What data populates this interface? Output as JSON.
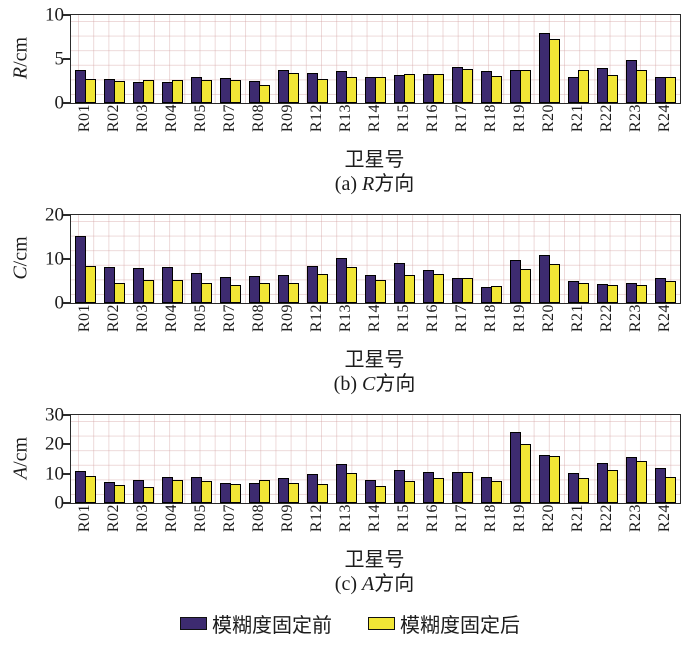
{
  "figure": {
    "x_axis_title": "卫星号",
    "panels": [
      "(a) R方向",
      "(b) C方向",
      "(c) A方向"
    ]
  },
  "legend": {
    "items": [
      {
        "label": "模糊度固定前",
        "color": "#3d2b70"
      },
      {
        "label": "模糊度固定后",
        "color": "#f1e636"
      }
    ]
  },
  "colors": {
    "before_fix": "#3d2b70",
    "after_fix": "#f1e636",
    "axis": "#2a2a2a",
    "grid": "#d2a0a0"
  },
  "chart_data": [
    {
      "type": "bar",
      "panel": "a",
      "caption": {
        "prefix": "(a) ",
        "letter": "R",
        "suffix": "方向"
      },
      "ylabel": {
        "letter": "R",
        "unit": "/cm"
      },
      "xlabel": "卫星号",
      "ylim": [
        0,
        10
      ],
      "yticks": [
        0,
        5,
        10
      ],
      "grid": true,
      "legend_position": "bottom",
      "categories": [
        "R01",
        "R02",
        "R03",
        "R04",
        "R05",
        "R07",
        "R08",
        "R09",
        "R12",
        "R13",
        "R14",
        "R15",
        "R16",
        "R17",
        "R18",
        "R19",
        "R20",
        "R21",
        "R22",
        "R23",
        "R24"
      ],
      "series": [
        {
          "name": "模糊度固定前",
          "color": "#3d2b70",
          "values": [
            3.7,
            2.7,
            2.4,
            2.4,
            2.9,
            2.8,
            2.5,
            3.8,
            3.4,
            3.6,
            2.9,
            3.2,
            3.3,
            4.1,
            3.6,
            3.8,
            7.9,
            3.0,
            4.0,
            4.9,
            3.0
          ]
        },
        {
          "name": "模糊度固定后",
          "color": "#f1e636",
          "values": [
            2.7,
            2.5,
            2.6,
            2.6,
            2.6,
            2.6,
            2.0,
            3.4,
            2.7,
            2.9,
            2.9,
            3.3,
            3.3,
            3.9,
            3.1,
            3.8,
            7.3,
            3.7,
            3.2,
            3.8,
            2.9
          ]
        }
      ]
    },
    {
      "type": "bar",
      "panel": "b",
      "caption": {
        "prefix": "(b) ",
        "letter": "C",
        "suffix": "方向"
      },
      "ylabel": {
        "letter": "C",
        "unit": "/cm"
      },
      "xlabel": "卫星号",
      "ylim": [
        0,
        20
      ],
      "yticks": [
        0,
        10,
        20
      ],
      "grid": true,
      "legend_position": "bottom",
      "categories": [
        "R01",
        "R02",
        "R03",
        "R04",
        "R05",
        "R07",
        "R08",
        "R09",
        "R12",
        "R13",
        "R14",
        "R15",
        "R16",
        "R17",
        "R18",
        "R19",
        "R20",
        "R21",
        "R22",
        "R23",
        "R24"
      ],
      "series": [
        {
          "name": "模糊度固定前",
          "color": "#3d2b70",
          "values": [
            15.2,
            8.2,
            8.0,
            8.1,
            6.9,
            6.0,
            6.2,
            6.3,
            8.5,
            10.3,
            6.3,
            9.1,
            7.6,
            5.7,
            3.6,
            9.7,
            11.0,
            4.9,
            4.4,
            4.5,
            5.6
          ]
        },
        {
          "name": "模糊度固定后",
          "color": "#f1e636",
          "values": [
            8.3,
            4.6,
            5.2,
            5.3,
            4.6,
            4.0,
            4.6,
            4.6,
            6.6,
            8.2,
            5.2,
            6.3,
            6.5,
            5.6,
            3.8,
            7.8,
            8.9,
            4.6,
            4.1,
            4.0,
            5.0
          ]
        }
      ]
    },
    {
      "type": "bar",
      "panel": "c",
      "caption": {
        "prefix": "(c) ",
        "letter": "A",
        "suffix": "方向"
      },
      "ylabel": {
        "letter": "A",
        "unit": "/cm"
      },
      "xlabel": "卫星号",
      "ylim": [
        0,
        30
      ],
      "yticks": [
        0,
        10,
        20,
        30
      ],
      "grid": true,
      "legend_position": "bottom",
      "categories": [
        "R01",
        "R02",
        "R03",
        "R04",
        "R05",
        "R07",
        "R08",
        "R09",
        "R12",
        "R13",
        "R14",
        "R15",
        "R16",
        "R17",
        "R18",
        "R19",
        "R20",
        "R21",
        "R22",
        "R23",
        "R24"
      ],
      "series": [
        {
          "name": "模糊度固定前",
          "color": "#3d2b70",
          "values": [
            10.8,
            7.2,
            7.9,
            8.7,
            8.7,
            6.8,
            6.8,
            8.5,
            10.0,
            13.4,
            7.9,
            11.3,
            10.6,
            10.7,
            8.8,
            24.2,
            16.5,
            10.4,
            13.5,
            15.6,
            12.0
          ]
        },
        {
          "name": "模糊度固定后",
          "color": "#f1e636",
          "values": [
            9.2,
            6.2,
            5.6,
            7.7,
            7.4,
            6.4,
            7.7,
            6.8,
            6.5,
            10.4,
            5.8,
            7.4,
            8.4,
            10.6,
            7.6,
            20.0,
            16.0,
            8.5,
            11.2,
            14.4,
            8.9
          ]
        }
      ]
    }
  ]
}
